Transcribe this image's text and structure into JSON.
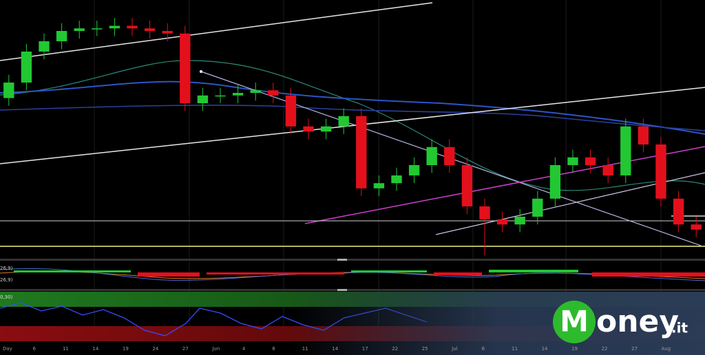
{
  "chart_data": {
    "type": "candlestick",
    "ylim": [
      0,
      100
    ],
    "open": [
      62,
      68,
      80,
      84,
      88,
      89,
      89,
      90,
      89,
      88,
      87,
      60,
      63,
      63,
      64,
      65,
      63,
      51,
      49,
      51,
      55,
      27,
      29,
      32,
      36,
      43,
      36,
      20,
      15,
      13,
      16,
      23,
      36,
      39,
      36,
      32,
      51,
      44,
      23,
      13
    ],
    "high": [
      71,
      83,
      87,
      91,
      92,
      92,
      93,
      93,
      92,
      91,
      90,
      66,
      66,
      67,
      68,
      68,
      66,
      54,
      54,
      58,
      58,
      32,
      35,
      39,
      46,
      46,
      39,
      23,
      18,
      19,
      26,
      39,
      42,
      42,
      39,
      54,
      54,
      47,
      26,
      16
    ],
    "low": [
      59,
      65,
      77,
      81,
      85,
      86,
      86,
      86,
      85,
      84,
      57,
      57,
      60,
      60,
      61,
      60,
      48,
      46,
      46,
      48,
      24,
      24,
      26,
      29,
      33,
      33,
      17,
      1,
      10,
      10,
      13,
      20,
      33,
      33,
      29,
      29,
      41,
      20,
      10,
      8
    ],
    "close": [
      68,
      80,
      84,
      88,
      89,
      89,
      90,
      89,
      88,
      87,
      60,
      63,
      63,
      64,
      65,
      63,
      51,
      49,
      51,
      55,
      27,
      29,
      32,
      36,
      43,
      36,
      20,
      15,
      13,
      16,
      23,
      36,
      39,
      36,
      32,
      51,
      44,
      23,
      13,
      11
    ],
    "colors": {
      "up": "#22c832",
      "down": "#e3101c"
    },
    "x_labels": [
      "Day",
      "6",
      "11",
      "14",
      "19",
      "24",
      "27",
      "Jun",
      "4",
      "8",
      "11",
      "14",
      "17",
      "22",
      "25",
      "Jul",
      "6",
      "11",
      "14",
      "19",
      "22",
      "27",
      "Aug"
    ]
  },
  "indicators": {
    "macd_labels": [
      "26,9)",
      "26,9)"
    ],
    "rsi_label": "0,30)"
  },
  "logo": {
    "initial": "M",
    "rest": "oney",
    "suffix": ".it"
  }
}
